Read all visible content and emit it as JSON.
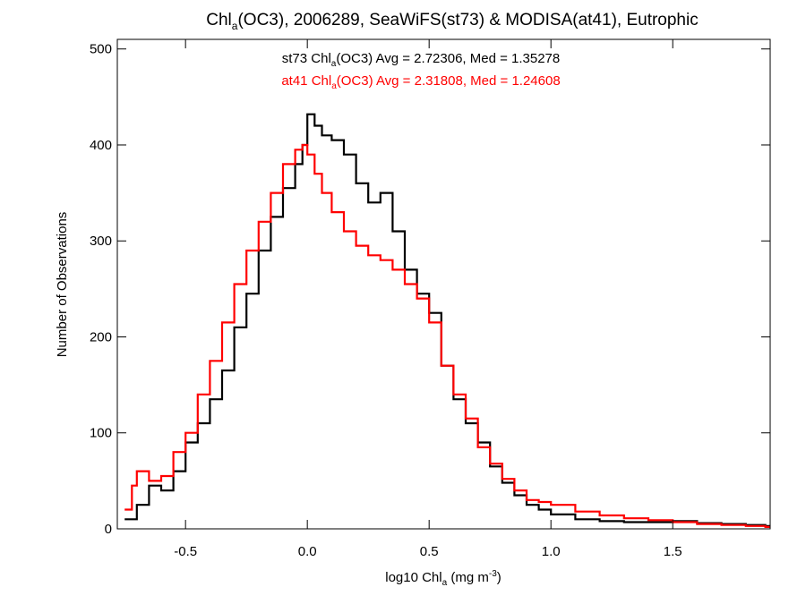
{
  "chart_data": {
    "type": "step",
    "title": {
      "pre": "Chl",
      "sub": "a",
      "post": "(OC3), 2006289, SeaWiFS(st73) & MODISA(at41), Eutrophic"
    },
    "xlabel": {
      "pre": "log10 Chl",
      "sub": "a",
      "mid": " (mg m",
      "sup": "-3",
      "post": ")"
    },
    "ylabel": "Number of Observations",
    "xlim": [
      -0.78,
      1.9
    ],
    "ylim": [
      0,
      510
    ],
    "xticks": [
      -0.5,
      0.0,
      0.5,
      1.0,
      1.5
    ],
    "xtick_labels": [
      "-0.5",
      "0.0",
      "0.5",
      "1.0",
      "1.5"
    ],
    "yticks": [
      0,
      100,
      200,
      300,
      400,
      500
    ],
    "ytick_labels": [
      "0",
      "100",
      "200",
      "300",
      "400",
      "500"
    ],
    "legend_placement": "top-center",
    "stats": [
      {
        "pre": "st73 Chl",
        "sub": "a",
        "post": "(OC3) Avg = 2.72306, Med = 1.35278",
        "color": "#000000"
      },
      {
        "pre": "at41 Chl",
        "sub": "a",
        "post": "(OC3) Avg = 2.31808, Med = 1.24608",
        "color": "#ff0000"
      }
    ],
    "series": [
      {
        "color": "#000000",
        "x": [
          -0.75,
          -0.7,
          -0.65,
          -0.6,
          -0.55,
          -0.5,
          -0.45,
          -0.4,
          -0.35,
          -0.3,
          -0.25,
          -0.2,
          -0.15,
          -0.1,
          -0.05,
          -0.02,
          0.0,
          0.03,
          0.06,
          0.1,
          0.15,
          0.2,
          0.25,
          0.3,
          0.35,
          0.4,
          0.45,
          0.5,
          0.55,
          0.6,
          0.65,
          0.7,
          0.75,
          0.8,
          0.85,
          0.9,
          0.95,
          1.0,
          1.1,
          1.2,
          1.3,
          1.4,
          1.5,
          1.6,
          1.7,
          1.8,
          1.88
        ],
        "y": [
          10,
          25,
          45,
          40,
          60,
          90,
          110,
          135,
          165,
          210,
          245,
          290,
          325,
          355,
          380,
          400,
          432,
          420,
          410,
          405,
          390,
          360,
          340,
          350,
          310,
          270,
          245,
          225,
          170,
          135,
          110,
          90,
          65,
          48,
          35,
          25,
          20,
          15,
          10,
          8,
          7,
          7,
          8,
          6,
          5,
          4,
          3
        ]
      },
      {
        "color": "#ff0000",
        "x": [
          -0.75,
          -0.72,
          -0.7,
          -0.65,
          -0.6,
          -0.55,
          -0.5,
          -0.45,
          -0.4,
          -0.35,
          -0.3,
          -0.25,
          -0.2,
          -0.15,
          -0.1,
          -0.05,
          -0.02,
          0.0,
          0.03,
          0.06,
          0.1,
          0.15,
          0.2,
          0.25,
          0.3,
          0.35,
          0.4,
          0.45,
          0.5,
          0.55,
          0.6,
          0.65,
          0.7,
          0.75,
          0.8,
          0.85,
          0.9,
          0.95,
          1.0,
          1.1,
          1.2,
          1.3,
          1.4,
          1.5,
          1.6,
          1.7,
          1.8,
          1.88
        ],
        "y": [
          20,
          45,
          60,
          50,
          55,
          80,
          100,
          140,
          175,
          215,
          255,
          290,
          320,
          350,
          380,
          395,
          400,
          390,
          370,
          350,
          330,
          310,
          295,
          285,
          280,
          270,
          255,
          240,
          215,
          170,
          140,
          115,
          85,
          68,
          52,
          40,
          30,
          28,
          25,
          18,
          14,
          11,
          9,
          7,
          5,
          4,
          3,
          2
        ]
      }
    ]
  }
}
